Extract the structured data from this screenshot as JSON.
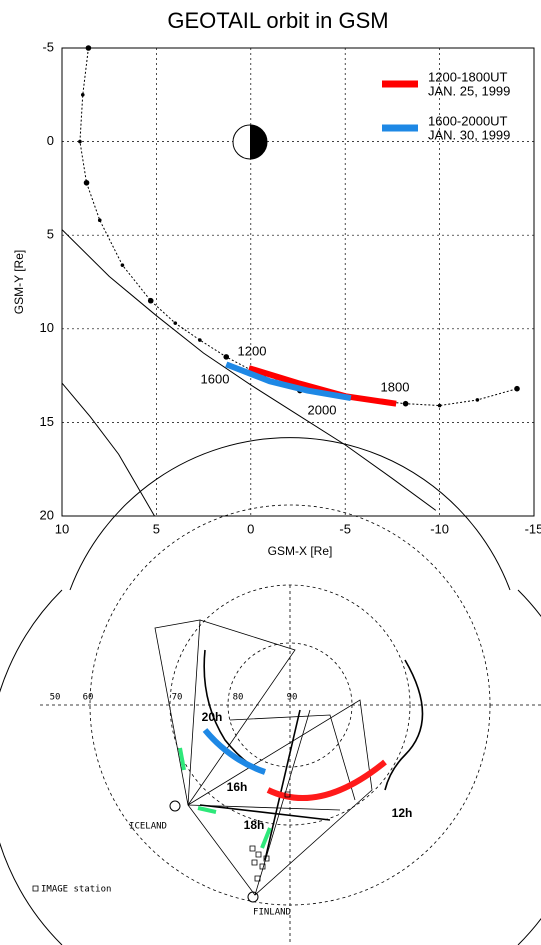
{
  "chart_data": {
    "type": "orbit",
    "title": "GEOTAIL orbit in GSM",
    "x_label": "GSM-X [Re]",
    "y_label": "GSM-Y [Re]",
    "xlim": [
      10,
      -15
    ],
    "ylim": [
      -5,
      20
    ],
    "xticks": [
      10,
      5,
      0,
      -5,
      -10,
      -15
    ],
    "yticks": [
      -5,
      0,
      5,
      10,
      15,
      20
    ],
    "grid": true,
    "series": [
      {
        "color": "#000000",
        "style": "dotted",
        "x": [
          8.6,
          8.9,
          9.05,
          8.7,
          8.0,
          6.8,
          5.3,
          4.0,
          2.7,
          1.3,
          0,
          -1.3,
          -2.6,
          -4.5,
          -6.3,
          -8.2,
          -10,
          -12,
          -14.1
        ],
        "values": [
          -5,
          -2.5,
          0,
          2.2,
          4.2,
          6.6,
          8.5,
          9.7,
          10.6,
          11.5,
          12.2,
          12.8,
          13.3,
          13.6,
          13.8,
          14.0,
          14.1,
          13.8,
          13.2
        ]
      },
      {
        "color": "#000000",
        "style": "solid",
        "x": [
          10,
          7.5,
          5,
          2.5,
          0,
          -2.5,
          -5,
          -7.5,
          -9.8
        ],
        "values": [
          4.7,
          7.2,
          9.3,
          11.3,
          13,
          14.6,
          16.2,
          18,
          19.7
        ]
      },
      {
        "color": "#000000",
        "style": "solid",
        "x": [
          10,
          8.5,
          7,
          5.1
        ],
        "values": [
          12.9,
          14.7,
          16.7,
          20
        ]
      },
      {
        "name": "1200-1800UT",
        "date": "JAN. 25, 1999",
        "color": "#ff0000",
        "style": "thick",
        "x": [
          0.1,
          -2.5,
          -5,
          -7.7
        ],
        "values": [
          12.1,
          12.9,
          13.6,
          14.0
        ]
      },
      {
        "name": "1600-2000UT",
        "date": "JAN. 30, 1999",
        "color": "#1e88e5",
        "style": "thick",
        "x": [
          1.3,
          -1,
          -3,
          -5.3
        ],
        "values": [
          11.9,
          12.8,
          13.3,
          13.7
        ]
      }
    ],
    "annotations": [
      "1200",
      "1600",
      "1800",
      "2000"
    ]
  },
  "map": {
    "latitude_labels": [
      "50",
      "60",
      "70",
      "80",
      "90"
    ],
    "time_labels": [
      "20h",
      "16h",
      "18h",
      "12h"
    ],
    "stations": [
      "ICELAND",
      "FINLAND"
    ],
    "legend": "IMAGE station"
  }
}
